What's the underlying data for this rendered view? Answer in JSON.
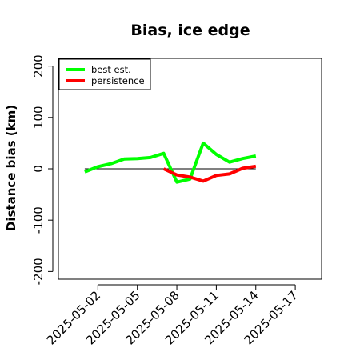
{
  "chart_data": {
    "type": "line",
    "title": "Bias, ice edge",
    "xlabel": "",
    "ylabel": "Distance bias (km)",
    "ylim": [
      -215,
      215
    ],
    "xlim": [
      "2025-04-29",
      "2025-05-19"
    ],
    "yticks": [
      -200,
      -100,
      0,
      100,
      200
    ],
    "xticks": [
      "2025-05-02",
      "2025-05-05",
      "2025-05-08",
      "2025-05-11",
      "2025-05-14",
      "2025-05-17"
    ],
    "reference_line": {
      "y": 0,
      "x_from": "2025-05-01",
      "x_to": "2025-05-14",
      "color": "#000000"
    },
    "legend": {
      "placement": "top-left",
      "entries": [
        "best est.",
        "persistence"
      ]
    },
    "grid": false,
    "series": [
      {
        "name": "best est.",
        "color": "#00ff00",
        "points": [
          {
            "x": "2025-05-01",
            "y": -6
          },
          {
            "x": "2025-05-02",
            "y": 4
          },
          {
            "x": "2025-05-03",
            "y": 10
          },
          {
            "x": "2025-05-04",
            "y": 19
          },
          {
            "x": "2025-05-05",
            "y": 20
          },
          {
            "x": "2025-05-06",
            "y": 22
          },
          {
            "x": "2025-05-07",
            "y": 30
          },
          {
            "x": "2025-05-08",
            "y": -26
          },
          {
            "x": "2025-05-09",
            "y": -20
          },
          {
            "x": "2025-05-10",
            "y": 50
          },
          {
            "x": "2025-05-11",
            "y": 28
          },
          {
            "x": "2025-05-12",
            "y": 13
          },
          {
            "x": "2025-05-13",
            "y": 20
          },
          {
            "x": "2025-05-14",
            "y": 25
          }
        ]
      },
      {
        "name": "persistence",
        "color": "#ff0000",
        "points": [
          {
            "x": "2025-05-07",
            "y": 0
          },
          {
            "x": "2025-05-08",
            "y": -12
          },
          {
            "x": "2025-05-09",
            "y": -16
          },
          {
            "x": "2025-05-10",
            "y": -24
          },
          {
            "x": "2025-05-11",
            "y": -13
          },
          {
            "x": "2025-05-12",
            "y": -10
          },
          {
            "x": "2025-05-13",
            "y": 1
          },
          {
            "x": "2025-05-14",
            "y": 5
          }
        ]
      }
    ]
  }
}
